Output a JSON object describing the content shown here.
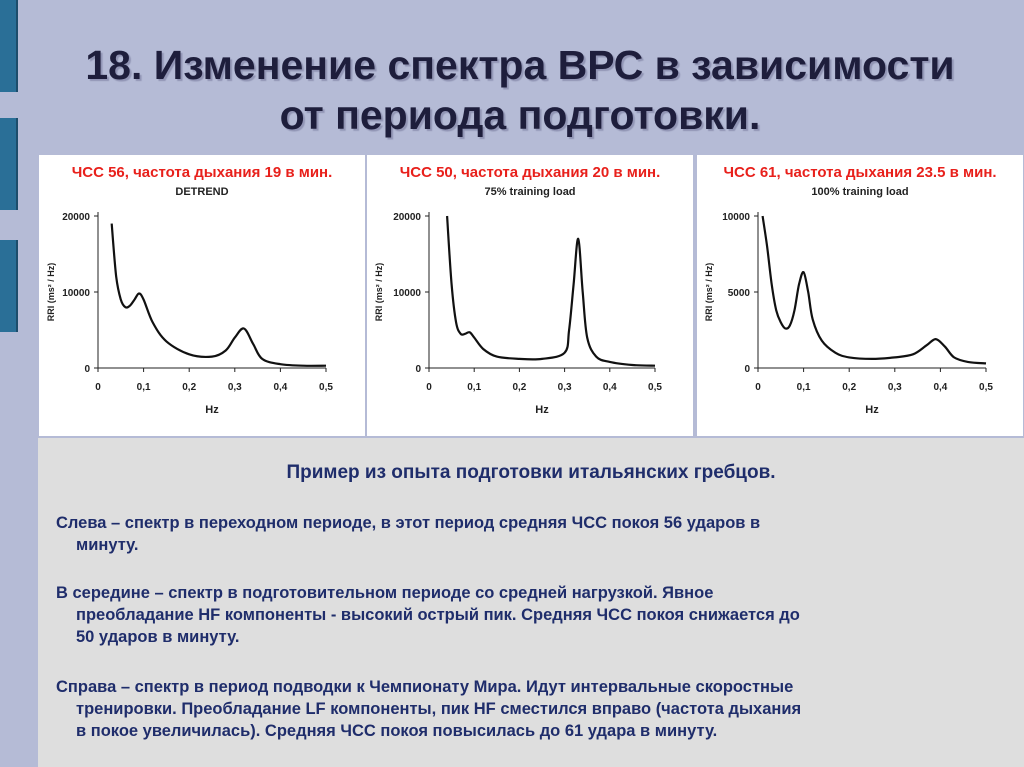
{
  "slide": {
    "title_line1": "18. Изменение спектра ВРС в зависимости",
    "title_line2": "от периода подготовки."
  },
  "description": {
    "caption": "Пример из опыта подготовки итальянских гребцов.",
    "p1_line1": "Слева – спектр в переходном периоде, в этот период средняя ЧСС покоя 56 ударов в",
    "p1_line2": "минуту.",
    "p2_line1": "В середине – спектр в подготовительном периоде со средней нагрузкой. Явное",
    "p2_line2": "преобладание HF компоненты - высокий острый пик. Средняя ЧСС покоя снижается до",
    "p2_line3": "50 ударов в минуту.",
    "p3_line1": "Справа – спектр в период подводки к Чемпионату Мира. Идут интервальные скоростные",
    "p3_line2": "тренировки. Преобладание LF компоненты, пик HF сместился вправо (частота дыхания",
    "p3_line3": "в покое увеличилась). Средняя ЧСС покоя повысилась до 61 удара в минуту."
  },
  "colors": {
    "chart_title": "#e8201b",
    "curve": "#111111",
    "text": "#1f2d6b"
  },
  "chart_data": [
    {
      "type": "line",
      "title": "ЧСС 56, частота дыхания 19 в мин.",
      "subtitle": "DETREND",
      "xlabel": "Hz",
      "ylabel": "RRI (ms² / Hz)",
      "xlim": [
        0,
        0.5
      ],
      "ylim": [
        0,
        20000
      ],
      "x_ticks": [
        "0",
        "0,1",
        "0,2",
        "0,3",
        "0,4",
        "0,5"
      ],
      "y_ticks": [
        "0",
        "10000",
        "20000"
      ],
      "x": [
        0.03,
        0.04,
        0.05,
        0.06,
        0.07,
        0.08,
        0.09,
        0.1,
        0.12,
        0.15,
        0.2,
        0.25,
        0.28,
        0.3,
        0.32,
        0.34,
        0.36,
        0.4,
        0.45,
        0.5
      ],
      "y": [
        19000,
        12000,
        9000,
        8000,
        8200,
        9000,
        9800,
        9000,
        6000,
        3500,
        1800,
        1500,
        2300,
        4000,
        5200,
        3200,
        1200,
        500,
        300,
        300
      ]
    },
    {
      "type": "line",
      "title": "ЧСС 50, частота дыхания 20  в мин.",
      "subtitle": "75% training load",
      "xlabel": "Hz",
      "ylabel": "RRI (ms² / Hz)",
      "xlim": [
        0,
        0.5
      ],
      "ylim": [
        0,
        20000
      ],
      "x_ticks": [
        "0",
        "0,1",
        "0,2",
        "0,3",
        "0,4",
        "0,5"
      ],
      "y_ticks": [
        "0",
        "10000",
        "20000"
      ],
      "x": [
        0.04,
        0.05,
        0.06,
        0.07,
        0.08,
        0.09,
        0.1,
        0.12,
        0.15,
        0.2,
        0.25,
        0.3,
        0.31,
        0.32,
        0.33,
        0.34,
        0.35,
        0.37,
        0.4,
        0.45,
        0.5
      ],
      "y": [
        20000,
        11000,
        6000,
        4500,
        4500,
        4700,
        4000,
        2500,
        1500,
        1200,
        1200,
        2000,
        5000,
        11000,
        17000,
        10000,
        4000,
        1500,
        800,
        400,
        300
      ]
    },
    {
      "type": "line",
      "title": "ЧСС 61, частота дыхания 23.5 в мин.",
      "subtitle": "100% training load",
      "xlabel": "Hz",
      "ylabel": "RRI (ms² / Hz)",
      "xlim": [
        0,
        0.5
      ],
      "ylim": [
        0,
        10000
      ],
      "x_ticks": [
        "0",
        "0,1",
        "0,2",
        "0,3",
        "0,4",
        "0,5"
      ],
      "y_ticks": [
        "0",
        "5000",
        "10000"
      ],
      "x": [
        0.01,
        0.02,
        0.03,
        0.04,
        0.05,
        0.06,
        0.07,
        0.08,
        0.09,
        0.1,
        0.11,
        0.12,
        0.14,
        0.17,
        0.2,
        0.25,
        0.3,
        0.34,
        0.37,
        0.39,
        0.41,
        0.43,
        0.46,
        0.5
      ],
      "y": [
        10000,
        8000,
        5500,
        3800,
        3000,
        2600,
        2800,
        3800,
        5500,
        6300,
        5000,
        3200,
        1800,
        1000,
        700,
        600,
        700,
        900,
        1500,
        1900,
        1400,
        700,
        400,
        300
      ]
    }
  ]
}
